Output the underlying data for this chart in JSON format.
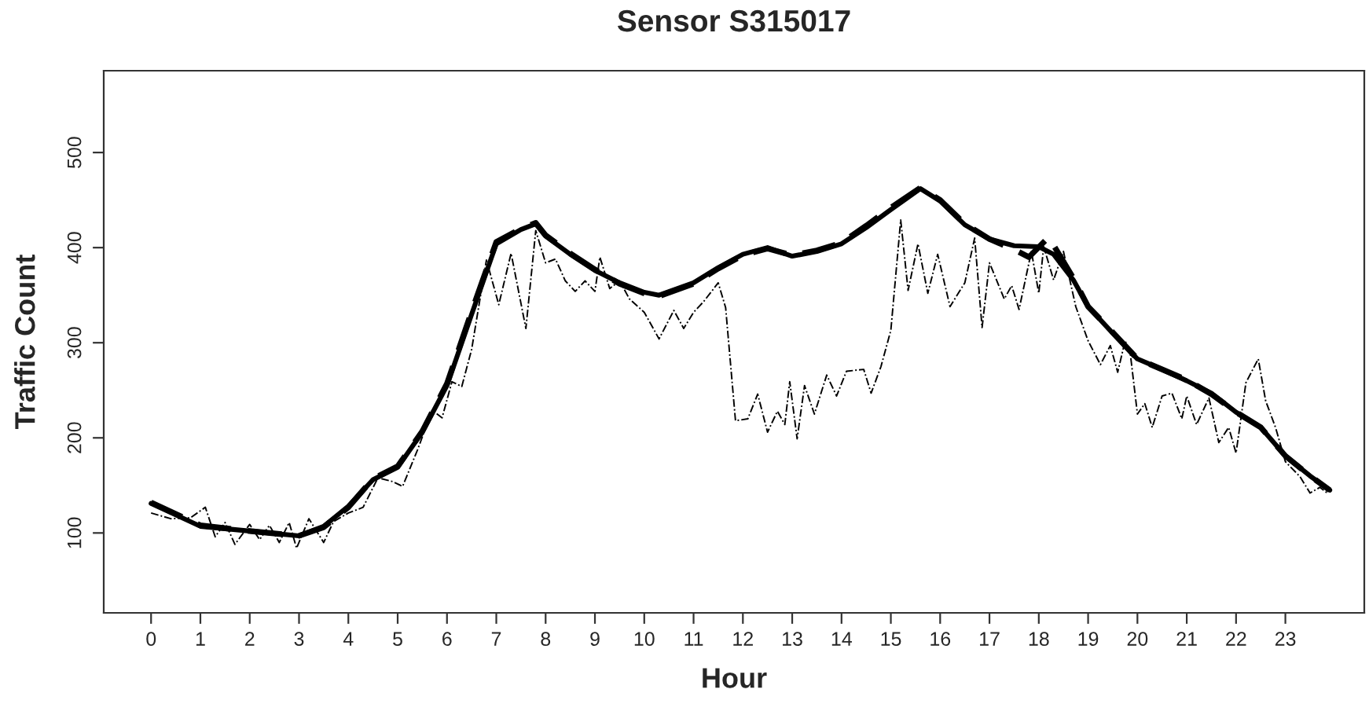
{
  "chart_data": {
    "type": "line",
    "title": "Sensor S315017",
    "xlabel": "Hour",
    "ylabel": "Traffic Count",
    "xlim": [
      -0.96,
      24.6
    ],
    "ylim": [
      16,
      586
    ],
    "xticks": [
      0,
      1,
      2,
      3,
      4,
      5,
      6,
      7,
      8,
      9,
      10,
      11,
      12,
      13,
      14,
      15,
      16,
      17,
      18,
      19,
      20,
      21,
      22,
      23
    ],
    "yticks": [
      100,
      200,
      300,
      400,
      500
    ],
    "grid": false,
    "legend": false,
    "series": [
      {
        "color": "#000000",
        "line_style": "dashed",
        "x": [
          0,
          0.4,
          0.8,
          1.1,
          1.3,
          1.5,
          1.7,
          2.0,
          2.2,
          2.4,
          2.6,
          2.8,
          2.95,
          3.2,
          3.5,
          3.7,
          4.0,
          4.3,
          4.6,
          4.9,
          5.1,
          5.4,
          5.7,
          5.9,
          6.1,
          6.3,
          6.5,
          6.8,
          7.05,
          7.3,
          7.6,
          7.8,
          8.0,
          8.2,
          8.4,
          8.6,
          8.8,
          9.0,
          9.1,
          9.3,
          9.5,
          9.7,
          10.0,
          10.3,
          10.6,
          10.8,
          11.0,
          11.2,
          11.5,
          11.65,
          11.85,
          12.1,
          12.3,
          12.5,
          12.7,
          12.85,
          12.95,
          13.1,
          13.25,
          13.45,
          13.7,
          13.9,
          14.1,
          14.45,
          14.6,
          14.8,
          15.0,
          15.2,
          15.35,
          15.55,
          15.75,
          15.95,
          16.2,
          16.5,
          16.7,
          16.85,
          17.0,
          17.3,
          17.45,
          17.6,
          17.85,
          18.0,
          18.1,
          18.3,
          18.5,
          18.75,
          19.0,
          19.25,
          19.45,
          19.6,
          19.75,
          19.85,
          20.0,
          20.15,
          20.3,
          20.5,
          20.7,
          20.9,
          21.0,
          21.2,
          21.45,
          21.65,
          21.85,
          22.0,
          22.2,
          22.45,
          22.6,
          22.8,
          23.0,
          23.3,
          23.5,
          23.7,
          23.85
        ],
        "values": [
          121,
          115,
          116,
          127,
          96,
          111,
          88,
          109,
          93,
          108,
          90,
          111,
          84,
          115,
          90,
          112,
          121,
          127,
          158,
          154,
          149,
          187,
          229,
          221,
          259,
          254,
          293,
          387,
          340,
          394,
          315,
          418,
          384,
          388,
          365,
          354,
          365,
          354,
          390,
          357,
          365,
          346,
          332,
          304,
          334,
          315,
          332,
          343,
          363,
          337,
          218,
          220,
          246,
          206,
          228,
          214,
          259,
          199,
          255,
          225,
          266,
          244,
          270,
          272,
          247,
          275,
          313,
          429,
          355,
          404,
          352,
          393,
          338,
          363,
          410,
          316,
          384,
          346,
          360,
          335,
          396,
          352,
          401,
          366,
          396,
          338,
          302,
          277,
          297,
          269,
          302,
          291,
          225,
          236,
          211,
          244,
          247,
          220,
          244,
          214,
          242,
          195,
          211,
          184,
          258,
          283,
          239,
          211,
          175,
          159,
          142,
          148,
          142
        ]
      },
      {
        "color": "#000000",
        "line_style": "dashed",
        "x": [
          0,
          1,
          2,
          3,
          3.5,
          4,
          4.5,
          5,
          5.5,
          6,
          6.5,
          7,
          7.5,
          7.8,
          8,
          8.5,
          9,
          9.5,
          10,
          10.3,
          11,
          11.5,
          12,
          12.5,
          13,
          13.5,
          14,
          14.5,
          15,
          15.6,
          16,
          16.5,
          17,
          17.5,
          17.8,
          18.2,
          18.7,
          19,
          19.5,
          20,
          20.5,
          21,
          21.5,
          22,
          22.5,
          23,
          23.5,
          23.9
        ],
        "values": [
          132,
          108,
          102,
          97,
          106,
          127,
          157,
          170,
          207,
          257,
          333,
          406,
          420,
          426,
          413,
          394,
          377,
          362,
          352,
          349,
          362,
          378,
          392,
          399,
          392,
          397,
          405,
          423,
          442,
          463,
          450,
          425,
          409,
          398,
          390,
          411,
          368,
          338,
          311,
          283,
          272,
          261,
          246,
          227,
          211,
          181,
          160,
          145
        ]
      },
      {
        "color": "#000000",
        "line_style": "solid",
        "x": [
          0,
          1,
          2,
          3,
          3.5,
          4,
          4.5,
          5,
          5.5,
          6,
          6.5,
          7,
          7.5,
          7.8,
          8,
          8.5,
          9,
          9.5,
          10,
          10.3,
          11,
          11.5,
          12,
          12.5,
          13,
          13.5,
          14,
          14.5,
          15,
          15.6,
          16,
          16.5,
          17,
          17.5,
          18,
          18.3,
          18.7,
          19,
          19.5,
          20,
          20.5,
          21,
          21.5,
          22,
          22.5,
          23,
          23.5,
          23.9
        ],
        "values": [
          131,
          107,
          102,
          97,
          107,
          128,
          156,
          169,
          206,
          255,
          330,
          404,
          419,
          425,
          412,
          393,
          376,
          363,
          353,
          350,
          363,
          379,
          393,
          400,
          391,
          396,
          404,
          421,
          440,
          462,
          449,
          424,
          409,
          402,
          401,
          393,
          366,
          338,
          310,
          283,
          272,
          260,
          247,
          227,
          211,
          181,
          160,
          145
        ]
      }
    ]
  }
}
